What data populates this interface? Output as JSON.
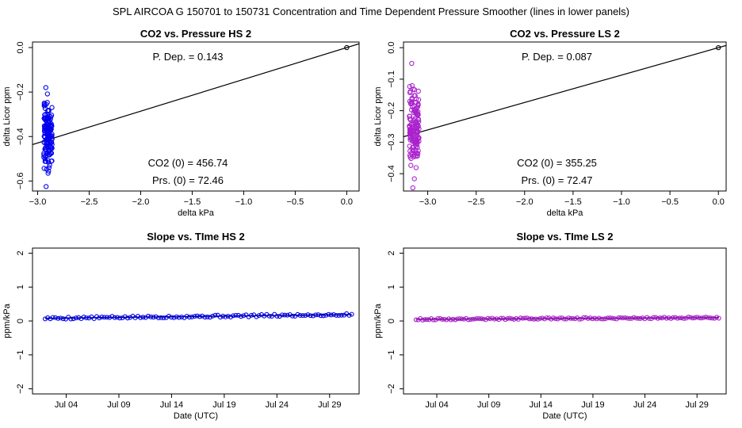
{
  "figure": {
    "main_title": "SPL   AIRCOA G   150701 to 150731   Concentration and Time Dependent Pressure Smoother (lines in lower panels)"
  },
  "chart_data": [
    {
      "id": "hs-pressure",
      "type": "scatter",
      "title": "CO2 vs. Pressure HS 2",
      "xlabel": "delta kPa",
      "ylabel": "delta Licor ppm",
      "xlim": [
        -3.05,
        0.12
      ],
      "ylim": [
        -0.645,
        0.025
      ],
      "xticks": [
        -3.0,
        -2.5,
        -2.0,
        -1.5,
        -1.0,
        -0.5,
        0.0
      ],
      "xtick_labels": [
        "−3.0",
        "−2.5",
        "−2.0",
        "−1.5",
        "−1.0",
        "−0.5",
        "0.0"
      ],
      "yticks": [
        0.0,
        -0.2,
        -0.4,
        -0.6
      ],
      "ytick_labels": [
        "0.0",
        "−0.2",
        "−0.4",
        "−0.6"
      ],
      "point_color": "#0000ee",
      "line_color": "#000000",
      "fit_line": {
        "slope": 0.143,
        "intercept": 0.0
      },
      "reference_point": [
        0.0,
        0.0
      ],
      "cluster": {
        "x_min": -2.94,
        "x_max": -2.86,
        "y_min": -0.625,
        "y_max": -0.18,
        "n": 150,
        "seed": 11
      },
      "annotations": {
        "p_dep": "P. Dep. =  0.143",
        "co2_zero": "CO2 (0) =  456.74",
        "prs_zero": "Prs. (0) = 72.46"
      }
    },
    {
      "id": "ls-pressure",
      "type": "scatter",
      "title": "CO2 vs. Pressure LS 2",
      "xlabel": "delta kPa",
      "ylabel": "delta Licor ppm",
      "xlim": [
        -3.25,
        0.08
      ],
      "ylim": [
        -0.455,
        0.018
      ],
      "xticks": [
        -3.0,
        -2.5,
        -2.0,
        -1.5,
        -1.0,
        -0.5,
        0.0
      ],
      "xtick_labels": [
        "−3.0",
        "−2.5",
        "−2.0",
        "−1.5",
        "−1.0",
        "−0.5",
        "0.0"
      ],
      "yticks": [
        0.0,
        -0.1,
        -0.2,
        -0.3,
        -0.4
      ],
      "ytick_labels": [
        "0.0",
        "−0.1",
        "−0.2",
        "−0.3",
        "−0.4"
      ],
      "point_color": "#aa22cc",
      "line_color": "#000000",
      "fit_line": {
        "slope": 0.087,
        "intercept": 0.0
      },
      "reference_point": [
        0.0,
        0.0
      ],
      "cluster": {
        "x_min": -3.19,
        "x_max": -3.09,
        "y_min": -0.445,
        "y_max": -0.05,
        "n": 150,
        "seed": 23
      },
      "annotations": {
        "p_dep": "P. Dep. =  0.087",
        "co2_zero": "CO2 (0) =  355.25",
        "prs_zero": "Prs. (0) = 72.47"
      }
    },
    {
      "id": "hs-time",
      "type": "line",
      "title": "Slope vs. TIme HS 2",
      "xlabel": "Date (UTC)",
      "ylabel": "ppm/kPa",
      "xlim": [
        -0.2,
        30.8
      ],
      "ylim": [
        -2.15,
        2.15
      ],
      "xticks": [
        3,
        8,
        13,
        18,
        23,
        28
      ],
      "xtick_labels": [
        "Jul 04",
        "Jul 09",
        "Jul 14",
        "Jul 19",
        "Jul 24",
        "Jul 29"
      ],
      "yticks": [
        -2,
        -1,
        0,
        1,
        2
      ],
      "ytick_labels": [
        "−2",
        "−1",
        "0",
        "1",
        "2"
      ],
      "point_color": "#0000ee",
      "line_color": "#000000",
      "series": {
        "x_start": 1.0,
        "x_end": 30.1,
        "n": 120,
        "y_start": 0.08,
        "y_end": 0.19,
        "noise": 0.035,
        "seed": 5
      }
    },
    {
      "id": "ls-time",
      "type": "line",
      "title": "Slope vs. TIme LS 2",
      "xlabel": "Date (UTC)",
      "ylabel": "ppm/kPa",
      "xlim": [
        -0.2,
        30.8
      ],
      "ylim": [
        -2.15,
        2.15
      ],
      "xticks": [
        3,
        8,
        13,
        18,
        23,
        28
      ],
      "xtick_labels": [
        "Jul 04",
        "Jul 09",
        "Jul 14",
        "Jul 19",
        "Jul 24",
        "Jul 29"
      ],
      "yticks": [
        -2,
        -1,
        0,
        1,
        2
      ],
      "ytick_labels": [
        "−2",
        "−1",
        "0",
        "1",
        "2"
      ],
      "point_color": "#aa22cc",
      "line_color": "#000000",
      "series": {
        "x_start": 1.0,
        "x_end": 30.1,
        "n": 140,
        "y_start": 0.05,
        "y_end": 0.1,
        "noise": 0.025,
        "seed": 9
      }
    }
  ]
}
